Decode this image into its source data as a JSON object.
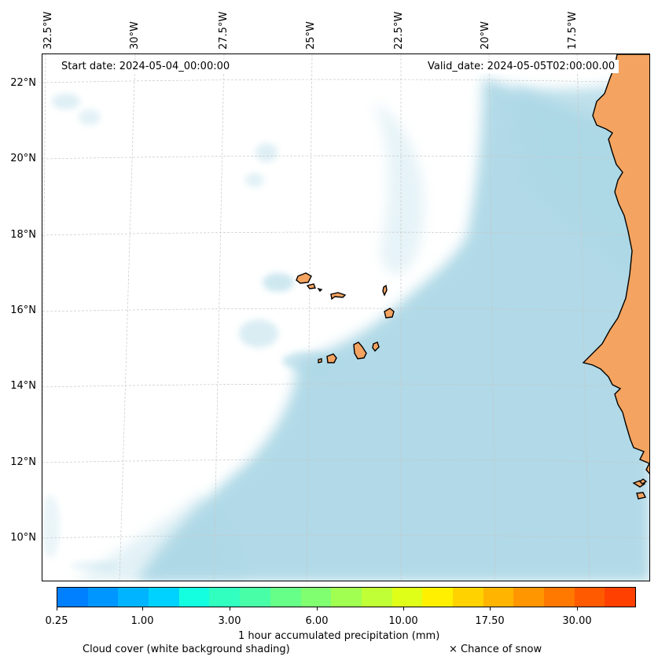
{
  "map": {
    "start_date": "Start date: 2024-05-04_00:00:00",
    "valid_date": "Valid_date: 2024-05-05T02:00:00.00",
    "lon_labels": [
      "32.5°W",
      "30°W",
      "27.5°W",
      "25°W",
      "22.5°W",
      "20°W",
      "17.5°W"
    ],
    "lat_labels": [
      "22°N",
      "20°N",
      "18°N",
      "16°N",
      "14°N",
      "12°N",
      "10°N"
    ],
    "colors": {
      "land": "#f4a460",
      "cloud_shading": "#add8e6",
      "coastline": "#000000",
      "gridline": "#c8c8c8"
    }
  },
  "colorbar": {
    "colors": [
      "#0080ff",
      "#0096ff",
      "#00b4ff",
      "#00d2ff",
      "#14ffe0",
      "#30ffc0",
      "#48ffa8",
      "#66ff88",
      "#80ff70",
      "#a0ff50",
      "#c0ff36",
      "#e0ff18",
      "#fff000",
      "#ffd200",
      "#ffb400",
      "#ff9600",
      "#ff7800",
      "#ff5a00",
      "#ff4000"
    ],
    "tick_labels": [
      "0.25",
      "1.00",
      "3.00",
      "6.00",
      "10.00",
      "17.50",
      "30.00"
    ],
    "label": "1 hour accumulated precipitation (mm)"
  },
  "captions": {
    "cloud_cover": "Cloud cover (white background shading)",
    "snow": "× Chance of snow"
  }
}
